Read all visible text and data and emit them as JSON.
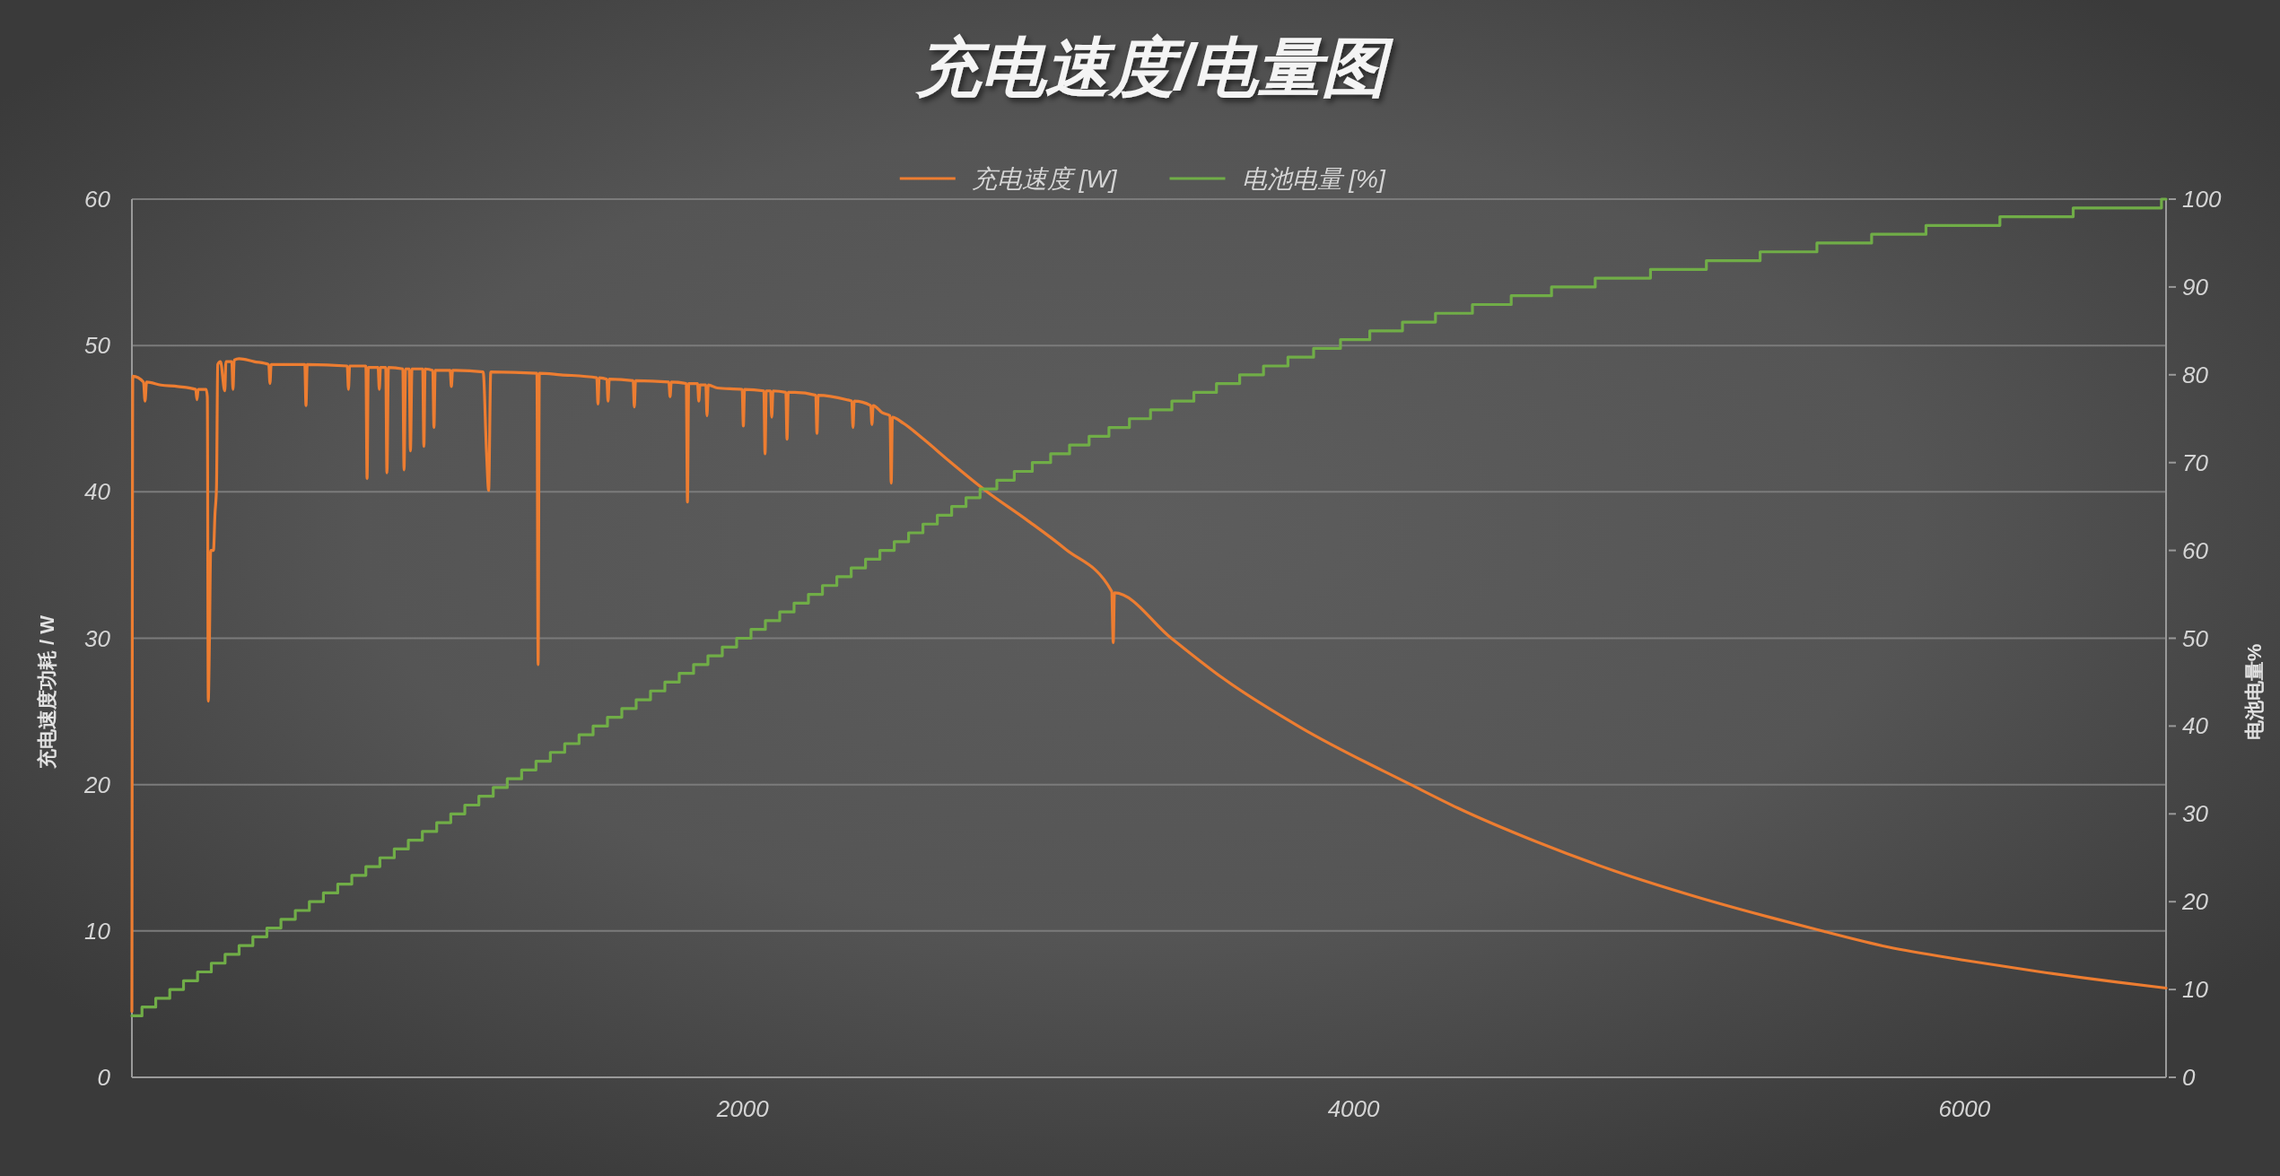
{
  "chart_data": {
    "type": "line",
    "title": "充电速度/电量图",
    "ylabel": "充电速度功耗 / W",
    "y2label": "电池电量%",
    "xlim": [
      0,
      6660
    ],
    "xticks": [
      2000,
      4000,
      6000
    ],
    "ylim": [
      0,
      60
    ],
    "yticks": [
      0,
      10,
      20,
      30,
      40,
      50,
      60
    ],
    "y2lim": [
      0,
      100
    ],
    "y2ticks": [
      0,
      10,
      20,
      30,
      40,
      50,
      60,
      70,
      80,
      90,
      100
    ],
    "grid": "y",
    "legend": "top",
    "series": [
      {
        "name": "充电速度 [W]",
        "color": "#ed7d31",
        "x": [
          0,
          3,
          38,
          43,
          48,
          95,
          150,
          209,
          213,
          217,
          243,
          247,
          250,
          254,
          258,
          267,
          272,
          277,
          281,
          290,
          304,
          308,
          327,
          331,
          335,
          351,
          400,
          448,
          452,
          456,
          566,
          570,
          574,
          705,
          709,
          713,
          766,
          770,
          774,
          806,
          810,
          814,
          831,
          835,
          840,
          887,
          891,
          896,
          908,
          912,
          917,
          952,
          956,
          960,
          985,
          989,
          993,
          1042,
          1046,
          1050,
          1150,
          1161,
          1168,
          1175,
          1326,
          1330,
          1334,
          1404,
          1522,
          1526,
          1530,
          1555,
          1559,
          1563,
          1641,
          1645,
          1649,
          1758,
          1762,
          1766,
          1815,
          1819,
          1823,
          1852,
          1856,
          1860,
          1879,
          1883,
          1887,
          1917,
          1998,
          2002,
          2006,
          2069,
          2073,
          2077,
          2091,
          2095,
          2099,
          2141,
          2145,
          2149,
          2170,
          2239,
          2243,
          2247,
          2339,
          2357,
          2361,
          2365,
          2419,
          2423,
          2427,
          2457,
          2482,
          2486,
          2490,
          2525,
          2592,
          2676,
          2794,
          2929,
          3056,
          3208,
          3213,
          3217,
          3403,
          3570,
          3827,
          4187,
          4341,
          4598,
          4855,
          5112,
          5369,
          5497,
          5750,
          6000,
          6250,
          6500,
          6660
        ],
        "values": [
          4.5,
          47.9,
          47.5,
          46.2,
          47.5,
          47.3,
          47.2,
          47.0,
          46.3,
          47.0,
          47.0,
          46.5,
          25.7,
          30.0,
          36.0,
          36.0,
          38.5,
          40.3,
          48.7,
          48.9,
          46.9,
          48.9,
          48.9,
          47.0,
          49.0,
          49.1,
          48.9,
          48.7,
          47.4,
          48.7,
          48.7,
          45.9,
          48.7,
          48.6,
          47.0,
          48.6,
          48.6,
          40.9,
          48.5,
          48.5,
          47.0,
          48.5,
          48.5,
          41.3,
          48.5,
          48.4,
          41.5,
          48.4,
          48.4,
          42.8,
          48.4,
          48.4,
          43.1,
          48.4,
          48.3,
          44.4,
          48.3,
          48.3,
          47.2,
          48.3,
          48.2,
          42.7,
          40.1,
          48.2,
          48.1,
          28.2,
          48.1,
          48.0,
          47.8,
          46.0,
          47.8,
          47.7,
          46.2,
          47.7,
          47.6,
          45.8,
          47.6,
          47.5,
          46.5,
          47.5,
          47.4,
          39.3,
          47.4,
          47.4,
          46.2,
          47.3,
          47.3,
          45.2,
          47.3,
          47.1,
          47.0,
          44.5,
          47.0,
          46.9,
          42.6,
          46.9,
          46.9,
          45.1,
          46.9,
          46.8,
          43.6,
          46.8,
          46.8,
          46.6,
          44.0,
          46.6,
          46.3,
          46.2,
          44.4,
          46.2,
          45.9,
          44.6,
          45.9,
          45.4,
          45.2,
          40.6,
          45.1,
          44.7,
          43.6,
          42.1,
          40.1,
          38.1,
          36.1,
          33.2,
          29.7,
          33.1,
          30.0,
          27.3,
          23.9,
          20.0,
          18.4,
          16.1,
          14.1,
          12.4,
          10.9,
          10.2,
          8.9,
          8.0,
          7.2,
          6.5,
          6.1
        ]
      },
      {
        "name": "电池电量 [%]",
        "color": "#70ad47",
        "type": "step",
        "axis": "y2",
        "x": [
          0,
          33,
          78,
          124,
          169,
          215,
          260,
          305,
          351,
          396,
          442,
          488,
          535,
          581,
          627,
          674,
          720,
          766,
          812,
          859,
          905,
          951,
          998,
          1044,
          1090,
          1136,
          1183,
          1229,
          1276,
          1323,
          1370,
          1417,
          1464,
          1510,
          1557,
          1604,
          1651,
          1698,
          1745,
          1792,
          1839,
          1886,
          1933,
          1980,
          2027,
          2074,
          2121,
          2168,
          2215,
          2261,
          2308,
          2355,
          2402,
          2449,
          2496,
          2543,
          2590,
          2637,
          2684,
          2731,
          2777,
          2832,
          2889,
          2948,
          3008,
          3070,
          3134,
          3199,
          3266,
          3335,
          3405,
          3477,
          3551,
          3627,
          3705,
          3785,
          3869,
          3957,
          4053,
          4160,
          4268,
          4389,
          4516,
          4648,
          4791,
          4972,
          5155,
          5331,
          5517,
          5696,
          5874,
          6116,
          6356,
          6645,
          6660
        ],
        "values": [
          7,
          8,
          9,
          10,
          11,
          12,
          13,
          14,
          15,
          16,
          17,
          18,
          19,
          20,
          21,
          22,
          23,
          24,
          25,
          26,
          27,
          28,
          29,
          30,
          31,
          32,
          33,
          34,
          35,
          36,
          37,
          38,
          39,
          40,
          41,
          42,
          43,
          44,
          45,
          46,
          47,
          48,
          49,
          50,
          51,
          52,
          53,
          54,
          55,
          56,
          57,
          58,
          59,
          60,
          61,
          62,
          63,
          64,
          65,
          66,
          67,
          68,
          69,
          70,
          71,
          72,
          73,
          74,
          75,
          76,
          77,
          78,
          79,
          80,
          81,
          82,
          83,
          84,
          85,
          86,
          87,
          88,
          89,
          90,
          91,
          92,
          93,
          94,
          95,
          96,
          97,
          98,
          99,
          100,
          100
        ]
      }
    ]
  }
}
